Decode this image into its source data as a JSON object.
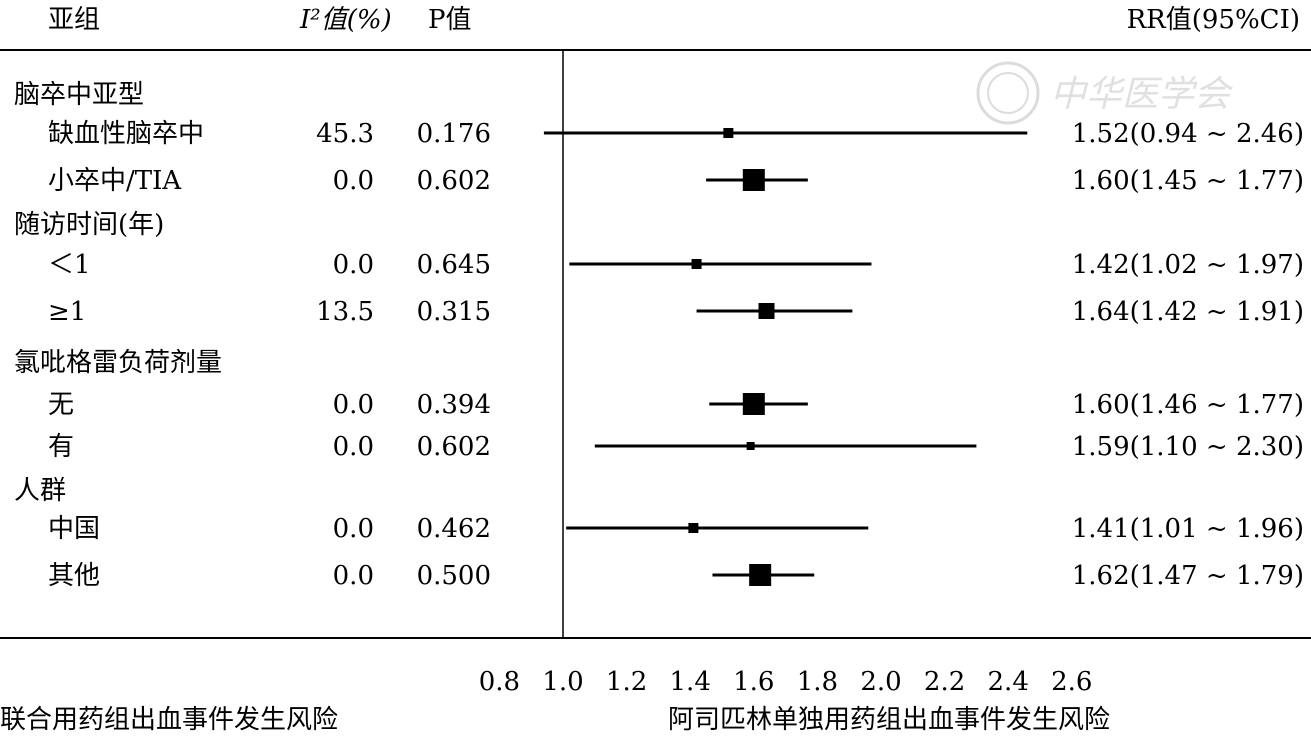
{
  "header": {
    "subgroup": "亚组",
    "i2": "I²值(%)",
    "p": "P值",
    "rr": "RR值(95%CI)"
  },
  "watermark": "中华医学会",
  "footer": {
    "left": "联合用药组出血事件发生风险",
    "right": "阿司匹林单独用药组出血事件发生风险"
  },
  "chart_data": {
    "type": "forest",
    "x_ticks": [
      0.8,
      1.0,
      1.2,
      1.4,
      1.6,
      1.8,
      2.0,
      2.2,
      2.4,
      2.6
    ],
    "x_tick_labels": [
      "0.8",
      "1.0",
      "1.2",
      "1.4",
      "1.6",
      "1.8",
      "2.0",
      "2.2",
      "2.4",
      "2.6"
    ],
    "reference_line": 1.0,
    "groups": [
      {
        "label": "脑卒中亚型",
        "rows": [
          {
            "label": "缺血性脑卒中",
            "i2": "45.3",
            "p": "0.176",
            "rr": 1.52,
            "lo": 0.94,
            "hi": 2.46,
            "rr_text": "1.52(0.94 ~ 2.46)",
            "weight": "small"
          },
          {
            "label": "小卒中/TIA",
            "i2": "0.0",
            "p": "0.602",
            "rr": 1.6,
            "lo": 1.45,
            "hi": 1.77,
            "rr_text": "1.60(1.45 ~ 1.77)",
            "weight": "large"
          }
        ]
      },
      {
        "label": "随访时间(年)",
        "rows": [
          {
            "label": "＜1",
            "i2": "0.0",
            "p": "0.645",
            "rr": 1.42,
            "lo": 1.02,
            "hi": 1.97,
            "rr_text": "1.42(1.02 ~ 1.97)",
            "weight": "small"
          },
          {
            "label": "≥1",
            "i2": "13.5",
            "p": "0.315",
            "rr": 1.64,
            "lo": 1.42,
            "hi": 1.91,
            "rr_text": "1.64(1.42 ~ 1.91)",
            "weight": "medium"
          }
        ]
      },
      {
        "label": "氯吡格雷负荷剂量",
        "rows": [
          {
            "label": "无",
            "i2": "0.0",
            "p": "0.394",
            "rr": 1.6,
            "lo": 1.46,
            "hi": 1.77,
            "rr_text": "1.60(1.46 ~ 1.77)",
            "weight": "large"
          },
          {
            "label": "有",
            "i2": "0.0",
            "p": "0.602",
            "rr": 1.59,
            "lo": 1.1,
            "hi": 2.3,
            "rr_text": "1.59(1.10 ~ 2.30)",
            "weight": "tiny"
          }
        ]
      },
      {
        "label": "人群",
        "rows": [
          {
            "label": "中国",
            "i2": "0.0",
            "p": "0.462",
            "rr": 1.41,
            "lo": 1.01,
            "hi": 1.96,
            "rr_text": "1.41(1.01 ~ 1.96)",
            "weight": "small"
          },
          {
            "label": "其他",
            "i2": "0.0",
            "p": "0.500",
            "rr": 1.62,
            "lo": 1.47,
            "hi": 1.79,
            "rr_text": "1.62(1.47 ~ 1.79)",
            "weight": "large"
          }
        ]
      }
    ]
  }
}
